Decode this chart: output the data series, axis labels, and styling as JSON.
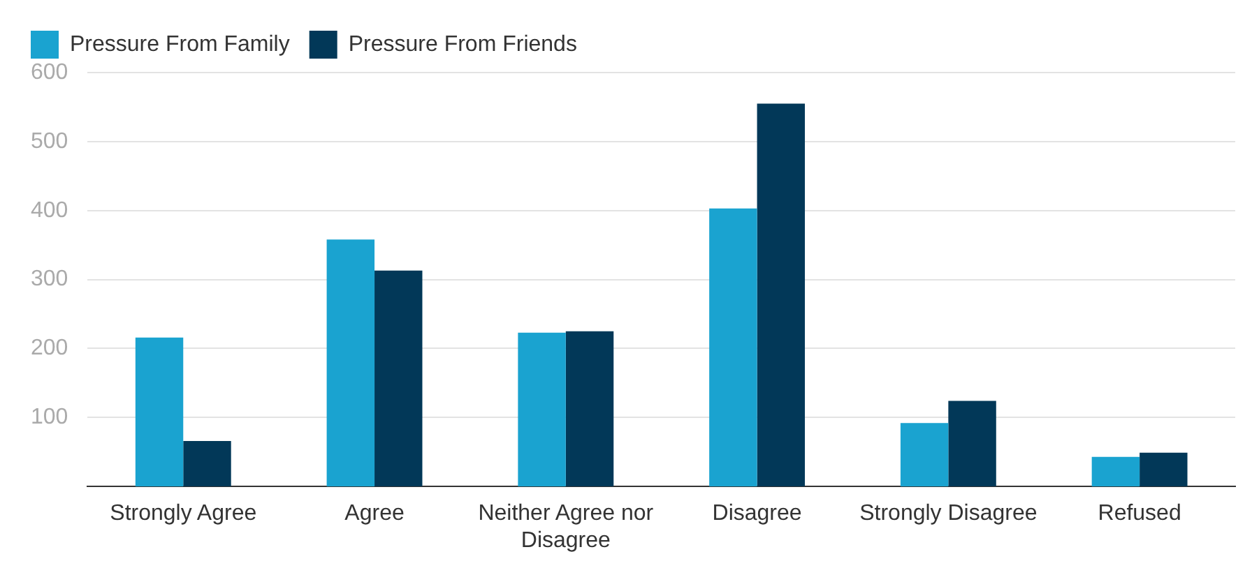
{
  "chart_data": {
    "type": "bar",
    "categories": [
      "Strongly Agree",
      "Agree",
      "Neither Agree nor Disagree",
      "Disagree",
      "Strongly Disagree",
      "Refused"
    ],
    "series": [
      {
        "name": "Pressure From Family",
        "color": "#1aa3d0",
        "values": [
          216,
          358,
          223,
          403,
          92,
          43
        ]
      },
      {
        "name": "Pressure From Friends",
        "color": "#023858",
        "values": [
          66,
          313,
          225,
          555,
          124,
          49
        ]
      }
    ],
    "ylim": [
      0,
      600
    ],
    "yticks": [
      100,
      200,
      300,
      400,
      500,
      600
    ],
    "grid": "y",
    "legend": "top left"
  }
}
